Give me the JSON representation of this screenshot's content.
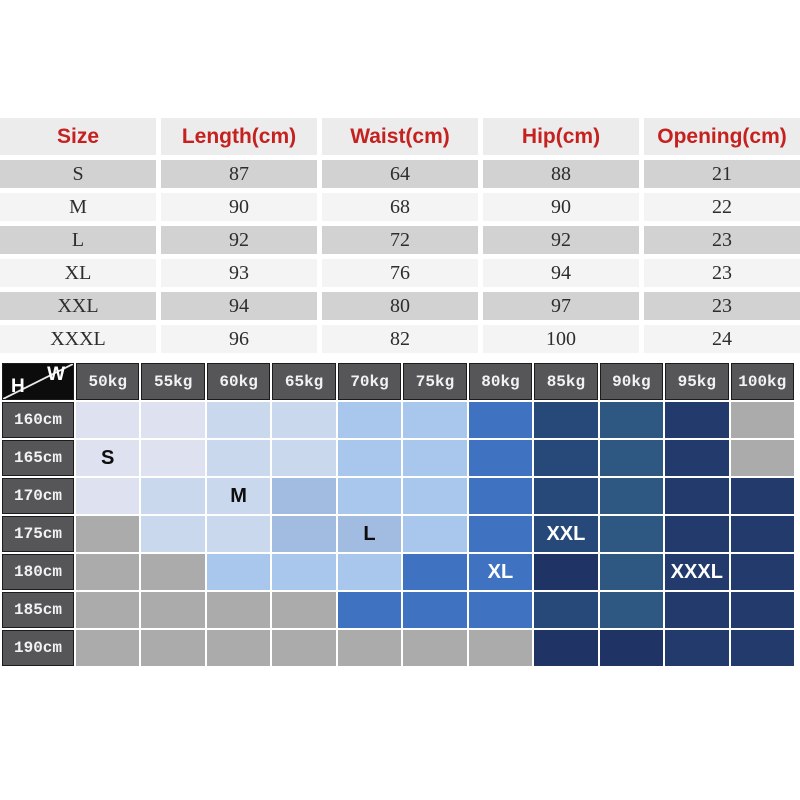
{
  "palette": {
    "page_bg": "#ffffff",
    "size_table": {
      "header_bg": "#edecec",
      "header_text": "#c4211f",
      "row_gray": "#d3d2d2",
      "row_light": "#f5f4f4",
      "value_text": "#2e2d2e"
    },
    "matrix": {
      "header_bg": "#565659",
      "header_text": "#f2f2f2",
      "corner_bg": "#0c0c0c",
      "border": "#1c1c1c",
      "label_dark": "#0d0d0d",
      "label_light": "#ffffff"
    },
    "cell_colors": {
      "p1": "#dee1ef",
      "p2": "#cad8ee",
      "p3": "#a9c6ec",
      "p4": "#a2bbe1",
      "blue": "#3f72c1",
      "steel1": "#27497a",
      "steel2": "#2e5781",
      "navy1": "#233a6d",
      "navy2": "#1f3365",
      "gray": "#ababab"
    }
  },
  "chart_data": [
    {
      "type": "table",
      "columns": [
        "Size",
        "Length(cm)",
        "Waist(cm)",
        "Hip(cm)",
        "Opening(cm)"
      ],
      "rows": [
        [
          "S",
          "87",
          "64",
          "88",
          "21"
        ],
        [
          "M",
          "90",
          "68",
          "90",
          "22"
        ],
        [
          "L",
          "92",
          "72",
          "92",
          "23"
        ],
        [
          "XL",
          "93",
          "76",
          "94",
          "23"
        ],
        [
          "XXL",
          "94",
          "80",
          "97",
          "23"
        ],
        [
          "XXXL",
          "96",
          "82",
          "100",
          "24"
        ]
      ]
    },
    {
      "type": "heatmap",
      "corner": {
        "top_right": "W",
        "bottom_left": "H"
      },
      "columns": [
        "50kg",
        "55kg",
        "60kg",
        "65kg",
        "70kg",
        "75kg",
        "80kg",
        "85kg",
        "90kg",
        "95kg",
        "100kg"
      ],
      "rows": [
        "160cm",
        "165cm",
        "170cm",
        "175cm",
        "180cm",
        "185cm",
        "190cm"
      ],
      "cells": [
        [
          "p1",
          "p1",
          "p2",
          "p2",
          "p3",
          "p3",
          "blue",
          "steel1",
          "steel2",
          "navy1",
          "gray"
        ],
        [
          "p1",
          "p1",
          "p2",
          "p2",
          "p3",
          "p3",
          "blue",
          "steel1",
          "steel2",
          "navy1",
          "gray"
        ],
        [
          "p1",
          "p2",
          "p2",
          "p4",
          "p3",
          "p3",
          "blue",
          "steel1",
          "steel2",
          "navy1",
          "navy1"
        ],
        [
          "gray",
          "p2",
          "p2",
          "p4",
          "p4",
          "p3",
          "blue",
          "steel1",
          "steel2",
          "navy1",
          "navy1"
        ],
        [
          "gray",
          "gray",
          "p3",
          "p3",
          "p3",
          "blue",
          "blue",
          "navy2",
          "steel2",
          "navy1",
          "navy1"
        ],
        [
          "gray",
          "gray",
          "gray",
          "gray",
          "blue",
          "blue",
          "blue",
          "steel1",
          "steel2",
          "navy1",
          "navy1"
        ],
        [
          "gray",
          "gray",
          "gray",
          "gray",
          "gray",
          "gray",
          "gray",
          "navy2",
          "navy2",
          "navy1",
          "navy1"
        ]
      ],
      "size_labels": [
        {
          "row": 1,
          "col": 0,
          "text": "S",
          "tone": "dark"
        },
        {
          "row": 2,
          "col": 2,
          "text": "M",
          "tone": "dark"
        },
        {
          "row": 3,
          "col": 4,
          "text": "L",
          "tone": "dark"
        },
        {
          "row": 3,
          "col": 7,
          "text": "XXL",
          "tone": "light"
        },
        {
          "row": 4,
          "col": 6,
          "text": "XL",
          "tone": "light"
        },
        {
          "row": 4,
          "col": 9,
          "text": "XXXL",
          "tone": "light"
        }
      ]
    }
  ]
}
